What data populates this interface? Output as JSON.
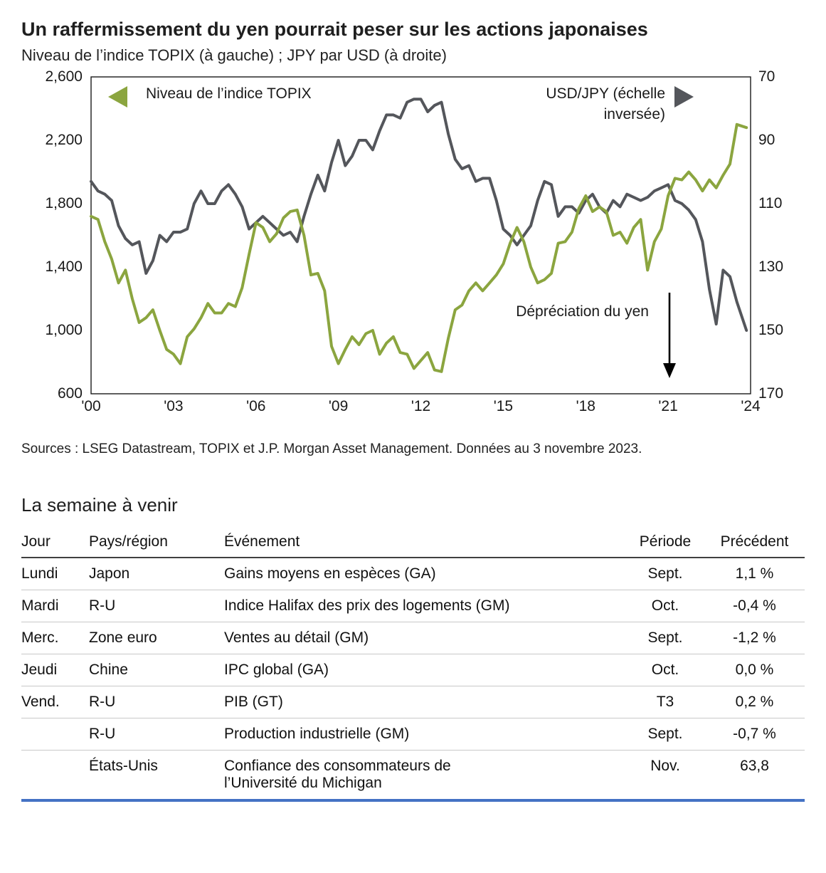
{
  "header": {
    "title": "Un raffermissement du yen pourrait peser sur les actions japonaises",
    "subtitle": "Niveau de l’indice TOPIX (à gauche) ; JPY par USD (à droite)"
  },
  "chart_data": {
    "type": "line",
    "title": "Un raffermissement du yen pourrait peser sur les actions japonaises",
    "subtitle": "Niveau de l’indice TOPIX (à gauche) ; JPY par USD (à droite)",
    "grid": false,
    "x_range": [
      2000,
      2024
    ],
    "x_ticks": [
      "'00",
      "'03",
      "'06",
      "'09",
      "'12",
      "'15",
      "'18",
      "'21",
      "'24"
    ],
    "left_axis": {
      "label": "Niveau de l’indice TOPIX",
      "min": 600,
      "max": 2600,
      "inverted": false,
      "ticks": [
        "2,600",
        "2,200",
        "1,800",
        "1,400",
        "1,000",
        "600"
      ]
    },
    "right_axis": {
      "label": "USD/JPY (échelle inversée)",
      "min": 70,
      "max": 170,
      "inverted": true,
      "ticks": [
        "70",
        "90",
        "110",
        "130",
        "150",
        "170"
      ]
    },
    "legend": {
      "left": "Niveau de l’indice TOPIX",
      "right": "USD/JPY (échelle inversée)"
    },
    "annotation": "Dépréciation du yen",
    "x": [
      2000,
      2000.25,
      2000.5,
      2000.75,
      2001,
      2001.25,
      2001.5,
      2001.75,
      2002,
      2002.25,
      2002.5,
      2002.75,
      2003,
      2003.25,
      2003.5,
      2003.75,
      2004,
      2004.25,
      2004.5,
      2004.75,
      2005,
      2005.25,
      2005.5,
      2005.75,
      2006,
      2006.25,
      2006.5,
      2006.75,
      2007,
      2007.25,
      2007.5,
      2007.75,
      2008,
      2008.25,
      2008.5,
      2008.75,
      2009,
      2009.25,
      2009.5,
      2009.75,
      2010,
      2010.25,
      2010.5,
      2010.75,
      2011,
      2011.25,
      2011.5,
      2011.75,
      2012,
      2012.25,
      2012.5,
      2012.75,
      2013,
      2013.25,
      2013.5,
      2013.75,
      2014,
      2014.25,
      2014.5,
      2014.75,
      2015,
      2015.25,
      2015.5,
      2015.75,
      2016,
      2016.25,
      2016.5,
      2016.75,
      2017,
      2017.25,
      2017.5,
      2017.75,
      2018,
      2018.25,
      2018.5,
      2018.75,
      2019,
      2019.25,
      2019.5,
      2019.75,
      2020,
      2020.25,
      2020.5,
      2020.75,
      2021,
      2021.25,
      2021.5,
      2021.75,
      2022,
      2022.25,
      2022.5,
      2022.75,
      2023,
      2023.25,
      2023.5,
      2023.85
    ],
    "series": [
      {
        "name": "Niveau de l’indice TOPIX",
        "axis": "left",
        "color": "#8ba53f",
        "values": [
          1720,
          1700,
          1560,
          1450,
          1300,
          1380,
          1200,
          1050,
          1080,
          1130,
          1000,
          880,
          850,
          790,
          960,
          1010,
          1080,
          1170,
          1110,
          1110,
          1170,
          1150,
          1270,
          1480,
          1680,
          1650,
          1560,
          1610,
          1710,
          1750,
          1760,
          1600,
          1350,
          1360,
          1250,
          900,
          790,
          880,
          960,
          910,
          980,
          1000,
          850,
          920,
          960,
          860,
          850,
          760,
          810,
          860,
          750,
          740,
          950,
          1130,
          1160,
          1250,
          1300,
          1250,
          1300,
          1350,
          1420,
          1550,
          1650,
          1560,
          1400,
          1300,
          1320,
          1360,
          1550,
          1560,
          1620,
          1770,
          1850,
          1750,
          1780,
          1750,
          1600,
          1620,
          1550,
          1650,
          1700,
          1380,
          1560,
          1640,
          1850,
          1960,
          1950,
          2000,
          1950,
          1880,
          1950,
          1900,
          1980,
          2050,
          2300,
          2280
        ]
      },
      {
        "name": "USD/JPY (échelle inversée)",
        "axis": "right",
        "color": "#54565b",
        "values": [
          103,
          106,
          107,
          109,
          117,
          121,
          123,
          122,
          132,
          128,
          120,
          122,
          119,
          119,
          118,
          110,
          106,
          110,
          110,
          106,
          104,
          107,
          111,
          118,
          116,
          114,
          116,
          118,
          120,
          119,
          122,
          114,
          107,
          101,
          106,
          97,
          90,
          98,
          95,
          90,
          90,
          93,
          87,
          82,
          82,
          83,
          78,
          77,
          77,
          81,
          79,
          78,
          88,
          96,
          99,
          98,
          103,
          102,
          102,
          109,
          118,
          120,
          123,
          120,
          117,
          109,
          103,
          104,
          114,
          111,
          111,
          113,
          109,
          107,
          111,
          113,
          109,
          111,
          107,
          108,
          109,
          108,
          106,
          105,
          104,
          109,
          110,
          112,
          115,
          122,
          137,
          148,
          131,
          133,
          141,
          150
        ]
      }
    ]
  },
  "source": "Sources : LSEG Datastream, TOPIX et J.P. Morgan Asset Management. Données au 3 novembre 2023.",
  "week_ahead": {
    "title": "La semaine à venir",
    "columns": [
      "Jour",
      "Pays/région",
      "Événement",
      "Période",
      "Précédent"
    ],
    "rows": [
      {
        "day": "Lundi",
        "region": "Japon",
        "event": "Gains moyens en espèces (GA)",
        "period": "Sept.",
        "previous": "1,1 %"
      },
      {
        "day": "Mardi",
        "region": "R-U",
        "event": "Indice Halifax des prix des logements (GM)",
        "period": "Oct.",
        "previous": "-0,4 %"
      },
      {
        "day": "Merc.",
        "region": "Zone euro",
        "event": "Ventes au détail (GM)",
        "period": "Sept.",
        "previous": "-1,2 %"
      },
      {
        "day": "Jeudi",
        "region": "Chine",
        "event": "IPC global (GA)",
        "period": "Oct.",
        "previous": "0,0 %"
      },
      {
        "day": "Vend.",
        "region": "R-U",
        "event": "PIB (GT)",
        "period": "T3",
        "previous": "0,2 %"
      },
      {
        "day": "",
        "region": "R-U",
        "event": "Production industrielle (GM)",
        "period": "Sept.",
        "previous": "-0,7 %"
      },
      {
        "day": "",
        "region": "États-Unis",
        "event": "Confiance des consommateurs de l’Université du Michigan",
        "period": "Nov.",
        "previous": "63,8"
      }
    ]
  },
  "colors": {
    "topix_green": "#8ba53f",
    "usdjpy_gray": "#54565b",
    "table_accent_blue": "#4472c4",
    "plot_border": "#1a1a1a"
  }
}
